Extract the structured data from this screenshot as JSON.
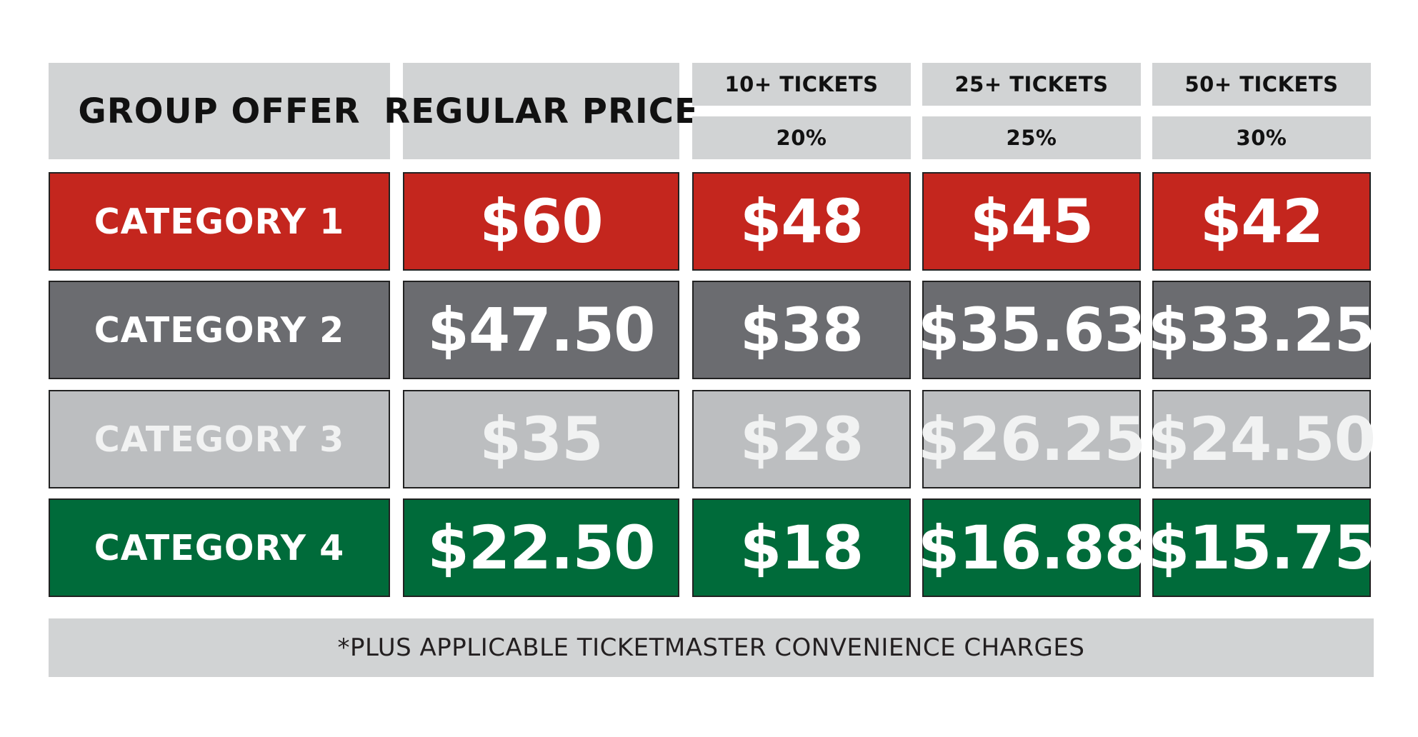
{
  "header": {
    "group_offer": "GROUP OFFER",
    "regular_price": "REGULAR PRICE",
    "tiers": [
      {
        "label": "10+ TICKETS",
        "discount": "20%"
      },
      {
        "label": "25+ TICKETS",
        "discount": "25%"
      },
      {
        "label": "50+ TICKETS",
        "discount": "30%"
      }
    ]
  },
  "rows": [
    {
      "category": "CATEGORY 1",
      "regular": "$60",
      "tier1": "$48",
      "tier2": "$45",
      "tier3": "$42",
      "color": "#c4261e"
    },
    {
      "category": "CATEGORY 2",
      "regular": "$47.50",
      "tier1": "$38",
      "tier2": "$35.63",
      "tier3": "$33.25",
      "color": "#6b6c70"
    },
    {
      "category": "CATEGORY 3",
      "regular": "$35",
      "tier1": "$28",
      "tier2": "$26.25",
      "tier3": "$24.50",
      "color": "#bcbec0"
    },
    {
      "category": "CATEGORY 4",
      "regular": "$22.50",
      "tier1": "$18",
      "tier2": "$16.88",
      "tier3": "$15.75",
      "color": "#006b3a"
    }
  ],
  "footnote": "*PLUS APPLICABLE TICKETMASTER CONVENIENCE CHARGES"
}
